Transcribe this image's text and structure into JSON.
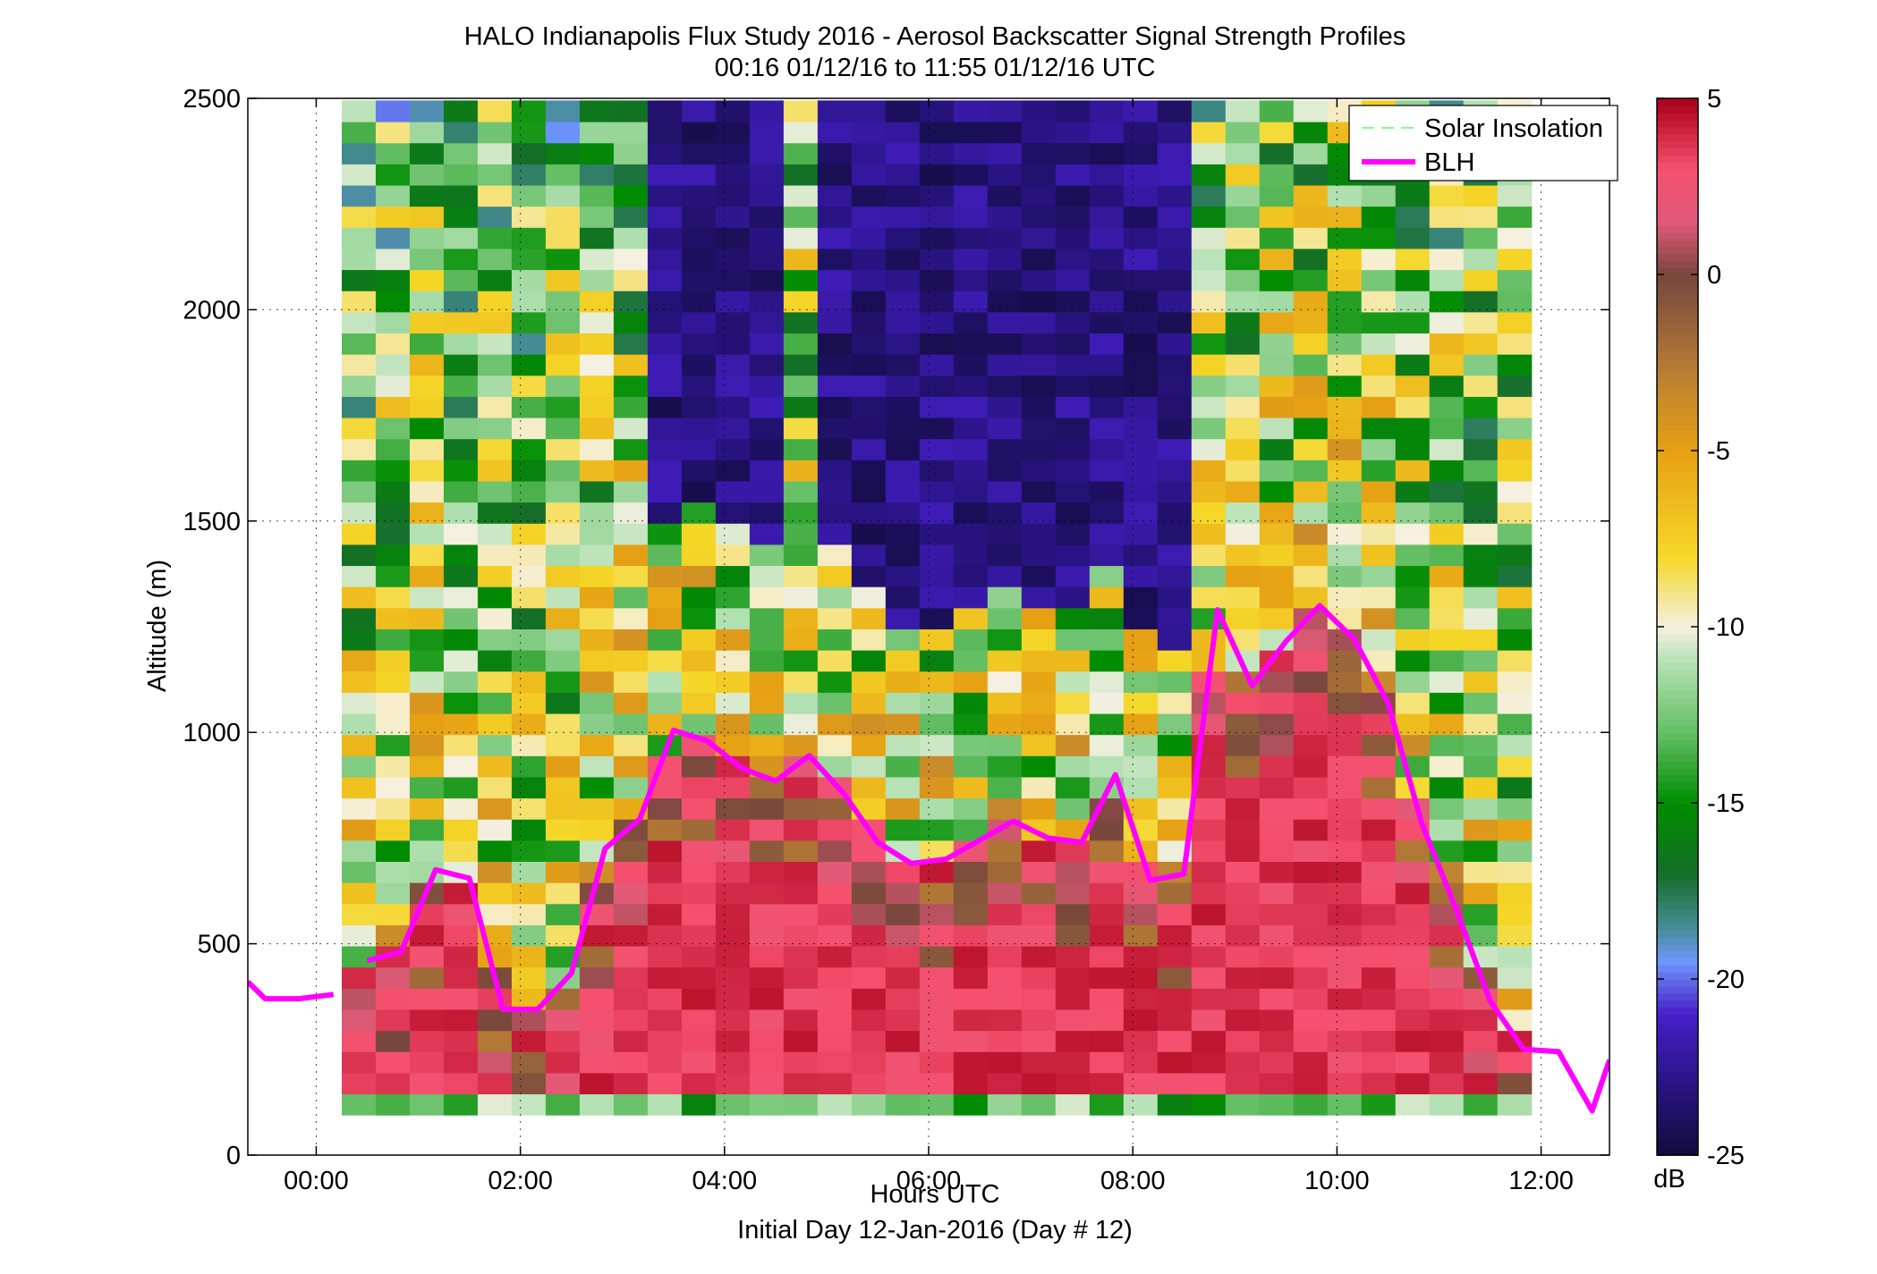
{
  "chart_data": {
    "type": "heatmap",
    "title": "HALO Indianapolis Flux Study 2016 - Aerosol Backscatter Signal Strength Profiles",
    "subtitle": "00:16 01/12/16 to 11:55 01/12/16  UTC",
    "xlabel": "Hours UTC",
    "xlabel2": "Initial Day 12-Jan-2016 (Day # 12)",
    "ylabel": "Altitude (m)",
    "xlim": [
      -0.67,
      12.67
    ],
    "ylim": [
      0,
      2500
    ],
    "x_ticks": [
      0,
      2,
      4,
      6,
      8,
      10,
      12
    ],
    "x_tick_labels": [
      "00:00",
      "02:00",
      "04:00",
      "06:00",
      "08:00",
      "10:00",
      "12:00"
    ],
    "y_ticks": [
      0,
      500,
      1000,
      1500,
      2000,
      2500
    ],
    "y_tick_labels": [
      "0",
      "500",
      "1000",
      "1500",
      "2000",
      "2500"
    ],
    "grid": true,
    "legend_position": "top-right",
    "legend": [
      {
        "label": "Solar Insolation",
        "color": "#80ff80",
        "style": "dashed"
      },
      {
        "label": "BLH",
        "color": "#ff00ff",
        "style": "solid"
      }
    ],
    "colorbar": {
      "label": "dB",
      "min": -25,
      "max": 5,
      "ticks": [
        5,
        0,
        -5,
        -10,
        -15,
        -20,
        -25
      ],
      "tick_labels": [
        "5",
        "0",
        "-5",
        "-10",
        "-15",
        "-20",
        "-25"
      ]
    },
    "heatmap": {
      "x_start": 0.25,
      "x_step": 0.333,
      "columns": 35,
      "y_start": 95,
      "y_step": 50,
      "rows": 48,
      "value_range_db": [
        -25,
        5
      ]
    },
    "series": [
      {
        "name": "BLH",
        "color": "#ff00ff",
        "segments": [
          {
            "x": [
              -0.67,
              -0.5,
              -0.17,
              0.17
            ],
            "y": [
              410,
              370,
              370,
              380
            ]
          },
          {
            "x": [
              0.5,
              0.83,
              1.17,
              1.5,
              1.83,
              2.17,
              2.5,
              2.83,
              3.17,
              3.5,
              3.83,
              4.17,
              4.5,
              4.83,
              5.17,
              5.5,
              5.83,
              6.17,
              6.5,
              6.83,
              7.17,
              7.5,
              7.83,
              8.17,
              8.5,
              8.83,
              9.17,
              9.5,
              9.83,
              10.17,
              10.5,
              10.83,
              11.17,
              11.5,
              11.83,
              12.17,
              12.5,
              12.67
            ],
            "y": [
              460,
              480,
              675,
              655,
              345,
              345,
              430,
              725,
              795,
              1005,
              980,
              915,
              885,
              945,
              855,
              740,
              690,
              700,
              745,
              790,
              750,
              740,
              900,
              650,
              665,
              1290,
              1110,
              1215,
              1300,
              1220,
              1070,
              785,
              580,
              365,
              250,
              245,
              105,
              225
            ]
          }
        ]
      }
    ]
  }
}
